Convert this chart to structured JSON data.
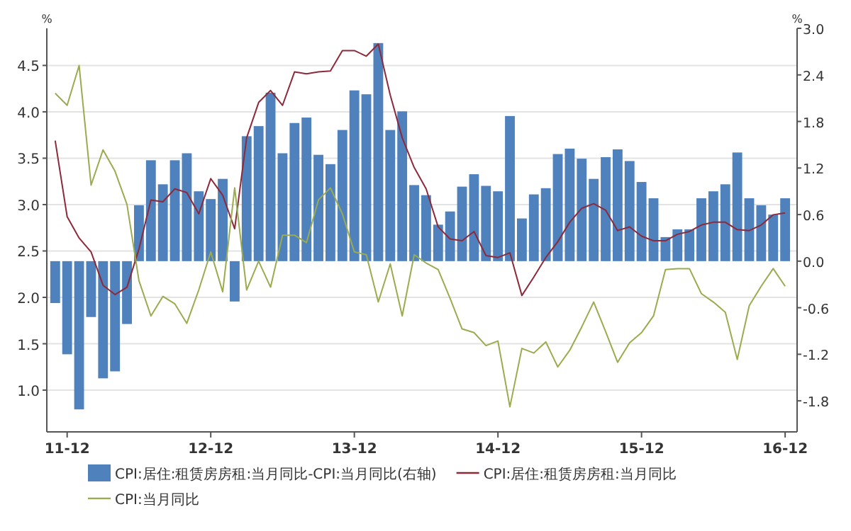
{
  "chart_data": {
    "type": "bar",
    "ylabel": "%",
    "y2label": "%",
    "x": [
      "2011-11",
      "2011-12",
      "2012-01",
      "2012-02",
      "2012-03",
      "2012-04",
      "2012-05",
      "2012-06",
      "2012-07",
      "2012-08",
      "2012-09",
      "2012-10",
      "2012-11",
      "2012-12",
      "2013-01",
      "2013-02",
      "2013-03",
      "2013-04",
      "2013-05",
      "2013-06",
      "2013-07",
      "2013-08",
      "2013-09",
      "2013-10",
      "2013-11",
      "2013-12",
      "2014-01",
      "2014-02",
      "2014-03",
      "2014-04",
      "2014-05",
      "2014-06",
      "2014-07",
      "2014-08",
      "2014-09",
      "2014-10",
      "2014-11",
      "2014-12",
      "2015-01",
      "2015-02",
      "2015-03",
      "2015-04",
      "2015-05",
      "2015-06",
      "2015-07",
      "2015-08",
      "2015-09",
      "2015-10",
      "2015-11",
      "2015-12",
      "2016-01",
      "2016-02",
      "2016-03",
      "2016-04",
      "2016-05",
      "2016-06",
      "2016-07",
      "2016-08",
      "2016-09",
      "2016-10",
      "2016-11",
      "2016-12"
    ],
    "series": [
      {
        "name": "CPI:居住:租赁房房租:当月同比-CPI:当月同比(右轴)",
        "axis": "y2",
        "color": "#4f81bd",
        "values": [
          -0.54,
          -1.2,
          -1.91,
          -0.72,
          -1.51,
          -1.42,
          -0.81,
          0.72,
          1.3,
          0.99,
          1.3,
          1.39,
          0.9,
          0.8,
          1.06,
          -0.52,
          1.61,
          1.74,
          2.17,
          1.39,
          1.78,
          1.85,
          1.37,
          1.25,
          1.69,
          2.2,
          2.15,
          2.81,
          1.69,
          1.93,
          0.98,
          0.85,
          0.47,
          0.64,
          0.96,
          1.12,
          0.97,
          0.9,
          1.87,
          0.55,
          0.86,
          0.94,
          1.38,
          1.45,
          1.32,
          1.06,
          1.34,
          1.44,
          1.29,
          1.02,
          0.81,
          0.31,
          0.41,
          0.41,
          0.81,
          0.9,
          0.99,
          1.4,
          0.81,
          0.72,
          0.6,
          0.81
        ]
      },
      {
        "name": "CPI:居住:租赁房房租:当月同比",
        "type": "line",
        "color": "#8c2a3a",
        "values": [
          3.69,
          2.87,
          2.64,
          2.49,
          2.13,
          2.03,
          2.11,
          2.52,
          3.05,
          3.03,
          3.17,
          3.13,
          2.9,
          3.28,
          3.1,
          2.74,
          3.72,
          4.1,
          4.23,
          4.07,
          4.43,
          4.41,
          4.43,
          4.44,
          4.66,
          4.66,
          4.6,
          4.73,
          4.18,
          3.72,
          3.4,
          3.17,
          2.76,
          2.63,
          2.61,
          2.71,
          2.45,
          2.43,
          2.48,
          2.02,
          2.22,
          2.43,
          2.6,
          2.81,
          2.96,
          3.01,
          2.94,
          2.72,
          2.76,
          2.66,
          2.61,
          2.61,
          2.68,
          2.71,
          2.78,
          2.81,
          2.81,
          2.73,
          2.72,
          2.78,
          2.89,
          2.91
        ]
      },
      {
        "name": "CPI:当月同比",
        "type": "line",
        "color": "#9bab4f",
        "values": [
          4.2,
          4.07,
          4.5,
          3.21,
          3.59,
          3.36,
          3.0,
          2.18,
          1.8,
          2.01,
          1.93,
          1.72,
          2.08,
          2.49,
          2.06,
          3.18,
          2.08,
          2.39,
          2.11,
          2.67,
          2.67,
          2.59,
          3.05,
          3.18,
          2.9,
          2.49,
          2.46,
          1.95,
          2.36,
          1.8,
          2.46,
          2.37,
          2.3,
          1.99,
          1.66,
          1.62,
          1.48,
          1.53,
          0.82,
          1.45,
          1.4,
          1.52,
          1.25,
          1.43,
          1.68,
          1.95,
          1.63,
          1.3,
          1.51,
          1.62,
          1.8,
          2.3,
          2.31,
          2.31,
          2.04,
          1.95,
          1.84,
          1.33,
          1.91,
          2.12,
          2.31,
          2.12
        ]
      }
    ],
    "xlim": [
      "2011-10-10",
      "2017-01-01"
    ],
    "xticks": [
      {
        "value": "2011-12",
        "label": "11-12"
      },
      {
        "value": "2012-12",
        "label": "12-12"
      },
      {
        "value": "2013-12",
        "label": "13-12"
      },
      {
        "value": "2014-12",
        "label": "14-12"
      },
      {
        "value": "2015-12",
        "label": "15-12"
      },
      {
        "value": "2016-12",
        "label": "16-12"
      }
    ],
    "ylim": [
      0.55,
      4.9
    ],
    "yticks": [
      {
        "value": 1.0,
        "label": "1.0"
      },
      1.5,
      {
        "value": 2.0,
        "label": "2.0"
      },
      2.5,
      {
        "value": 3.0,
        "label": "3.0"
      },
      3.5,
      {
        "value": 4.0,
        "label": "4.0"
      },
      4.5
    ],
    "y2lim": [
      -2.2,
      3.0
    ],
    "y2ticks": [
      -1.8,
      -1.2,
      -0.6,
      {
        "value": 0.0,
        "label": "0.0"
      },
      0.6,
      1.2,
      1.8,
      2.4,
      {
        "value": 3.0,
        "label": "3.0"
      }
    ],
    "grid": "y",
    "legend": "bottom"
  }
}
